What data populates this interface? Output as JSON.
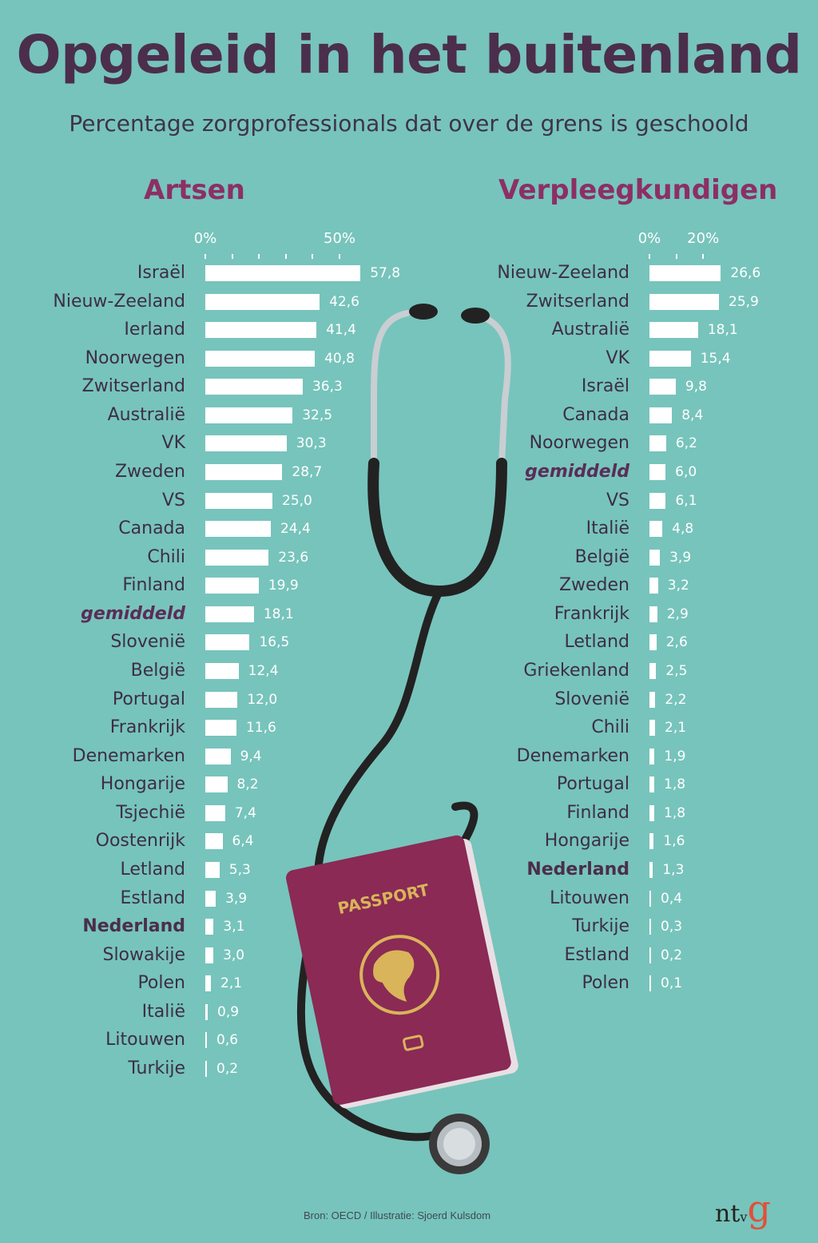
{
  "title": "Opgeleid in het buitenland",
  "subtitle": "Percentage zorgprofessionals dat over de grens is geschoold",
  "source": "Bron: OECD / Illustratie: Sjoerd Kulsdom",
  "logo": "ntvg",
  "passport_label": "PASSPORT",
  "colors": {
    "background": "#77c4bc",
    "title": "#4b2e4b",
    "section": "#8c2f65",
    "bar": "#ffffff",
    "passport": "#8a2a55",
    "gold": "#d9b45a"
  },
  "chart_data": [
    {
      "type": "bar",
      "orientation": "horizontal",
      "title": "Artsen",
      "unit": "%",
      "xlim": [
        0,
        60
      ],
      "tick_labels": [
        "0%",
        "50%"
      ],
      "ticks": [
        0,
        10,
        20,
        30,
        40,
        50
      ],
      "categories": [
        "Israël",
        "Nieuw-Zeeland",
        "Ierland",
        "Noorwegen",
        "Zwitserland",
        "Australië",
        "VK",
        "Zweden",
        "VS",
        "Canada",
        "Chili",
        "Finland",
        "gemiddeld",
        "Slovenië",
        "België",
        "Portugal",
        "Frankrijk",
        "Denemarken",
        "Hongarije",
        "Tsjechië",
        "Oostenrijk",
        "Letland",
        "Estland",
        "Nederland",
        "Slowakije",
        "Polen",
        "Italië",
        "Litouwen",
        "Turkije"
      ],
      "values": [
        57.8,
        42.6,
        41.4,
        40.8,
        36.3,
        32.5,
        30.3,
        28.7,
        25.0,
        24.4,
        23.6,
        19.9,
        18.1,
        16.5,
        12.4,
        12.0,
        11.6,
        9.4,
        8.2,
        7.4,
        6.4,
        5.3,
        3.9,
        3.1,
        3.0,
        2.1,
        0.9,
        0.6,
        0.2
      ],
      "value_labels": [
        "57,8",
        "42,6",
        "41,4",
        "40,8",
        "36,3",
        "32,5",
        "30,3",
        "28,7",
        "25,0",
        "24,4",
        "23,6",
        "19,9",
        "18,1",
        "16,5",
        "12,4",
        "12,0",
        "11,6",
        "9,4",
        "8,2",
        "7,4",
        "6,4",
        "5,3",
        "3,9",
        "3,1",
        "3,0",
        "2,1",
        "0,9",
        "0,6",
        "0,2"
      ],
      "highlight_average": "gemiddeld",
      "highlight_country": "Nederland"
    },
    {
      "type": "bar",
      "orientation": "horizontal",
      "title": "Verpleegkundigen",
      "unit": "%",
      "xlim": [
        0,
        30
      ],
      "tick_labels": [
        "0%",
        "20%"
      ],
      "ticks": [
        0,
        10,
        20
      ],
      "categories": [
        "Nieuw-Zeeland",
        "Zwitserland",
        "Australië",
        "VK",
        "Israël",
        "Canada",
        "Noorwegen",
        "gemiddeld",
        "VS",
        "Italië",
        "België",
        "Zweden",
        "Frankrijk",
        "Letland",
        "Griekenland",
        "Slovenië",
        "Chili",
        "Denemarken",
        "Portugal",
        "Finland",
        "Hongarije",
        "Nederland",
        "Litouwen",
        "Turkije",
        "Estland",
        "Polen"
      ],
      "values": [
        26.6,
        25.9,
        18.1,
        15.4,
        9.8,
        8.4,
        6.2,
        6.0,
        6.1,
        4.8,
        3.9,
        3.2,
        2.9,
        2.6,
        2.5,
        2.2,
        2.1,
        1.9,
        1.8,
        1.8,
        1.6,
        1.3,
        0.4,
        0.3,
        0.2,
        0.1
      ],
      "value_labels": [
        "26,6",
        "25,9",
        "18,1",
        "15,4",
        "9,8",
        "8,4",
        "6,2",
        "6,0",
        "6,1",
        "4,8",
        "3,9",
        "3,2",
        "2,9",
        "2,6",
        "2,5",
        "2,2",
        "2,1",
        "1,9",
        "1,8",
        "1,8",
        "1,6",
        "1,3",
        "0,4",
        "0,3",
        "0,2",
        "0,1"
      ],
      "highlight_average": "gemiddeld",
      "highlight_country": "Nederland"
    }
  ]
}
